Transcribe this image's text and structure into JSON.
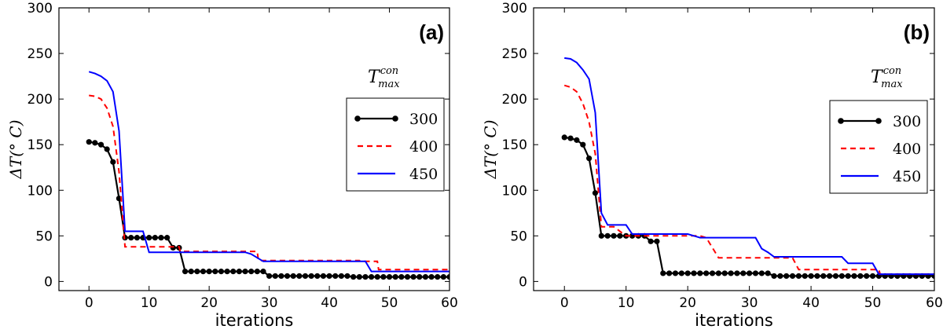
{
  "chart_data": [
    {
      "type": "line",
      "panel_label": "(a)",
      "xlabel": "iterations",
      "ylabel": "ΔT(° C)",
      "xlim": [
        -5,
        60
      ],
      "ylim": [
        -10,
        300
      ],
      "xticks": [
        "0",
        "10",
        "20",
        "30",
        "40",
        "50",
        "60"
      ],
      "yticks": [
        "0",
        "50",
        "100",
        "150",
        "200",
        "250",
        "300"
      ],
      "legend_title": "T_max^con",
      "legend_title_main": "T",
      "legend_title_sup": "con",
      "legend_title_sub": "max",
      "series": [
        {
          "name": "300",
          "color": "#000000",
          "style": "solid-marker",
          "x": [
            0,
            1,
            2,
            3,
            4,
            5,
            6,
            7,
            8,
            9,
            10,
            11,
            12,
            13,
            14,
            15,
            16,
            17,
            18,
            19,
            20,
            21,
            22,
            23,
            24,
            25,
            26,
            27,
            28,
            29,
            30,
            31,
            32,
            33,
            34,
            35,
            36,
            37,
            38,
            39,
            40,
            41,
            42,
            43,
            44,
            45,
            46,
            47,
            48,
            49,
            50,
            51,
            52,
            53,
            54,
            55,
            56,
            57,
            58,
            59,
            60
          ],
          "y": [
            153,
            152,
            150,
            145,
            131,
            91,
            48,
            48,
            48,
            48,
            48,
            48,
            48,
            48,
            37,
            37,
            11,
            11,
            11,
            11,
            11,
            11,
            11,
            11,
            11,
            11,
            11,
            11,
            11,
            11,
            6,
            6,
            6,
            6,
            6,
            6,
            6,
            6,
            6,
            6,
            6,
            6,
            6,
            6,
            5,
            5,
            5,
            5,
            5,
            5,
            5,
            5,
            5,
            5,
            5,
            5,
            5,
            5,
            5,
            5,
            5
          ]
        },
        {
          "name": "400",
          "color": "#ff0000",
          "style": "dashed",
          "x": [
            0,
            1,
            2,
            3,
            4,
            5,
            6,
            10,
            15,
            15.2,
            28,
            28.2,
            45,
            45.2,
            48,
            48.2,
            60
          ],
          "y": [
            204,
            203,
            200,
            190,
            170,
            120,
            38,
            38,
            38,
            33,
            33,
            23,
            23,
            22,
            22,
            13,
            13
          ]
        },
        {
          "name": "450",
          "color": "#0000ff",
          "style": "solid",
          "x": [
            0,
            1,
            2,
            3,
            4,
            5,
            6,
            9,
            10,
            26,
            27,
            29,
            46,
            47,
            60
          ],
          "y": [
            230,
            228,
            225,
            220,
            208,
            165,
            55,
            55,
            32,
            32,
            30,
            22,
            22,
            11,
            11
          ]
        }
      ]
    },
    {
      "type": "line",
      "panel_label": "(b)",
      "xlabel": "iterations",
      "ylabel": "ΔT(° C)",
      "xlim": [
        -5,
        60
      ],
      "ylim": [
        -10,
        300
      ],
      "xticks": [
        "0",
        "10",
        "20",
        "30",
        "40",
        "50",
        "60"
      ],
      "yticks": [
        "0",
        "50",
        "100",
        "150",
        "200",
        "250",
        "300"
      ],
      "legend_title": "T_max^con",
      "legend_title_main": "T",
      "legend_title_sup": "con",
      "legend_title_sub": "max",
      "series": [
        {
          "name": "300",
          "color": "#000000",
          "style": "solid-marker",
          "x": [
            0,
            1,
            2,
            3,
            4,
            5,
            6,
            7,
            8,
            9,
            10,
            11,
            12,
            13,
            14,
            15,
            16,
            17,
            18,
            19,
            20,
            21,
            22,
            23,
            24,
            25,
            26,
            27,
            28,
            29,
            30,
            31,
            32,
            33,
            34,
            35,
            36,
            37,
            38,
            39,
            40,
            41,
            42,
            43,
            44,
            45,
            46,
            47,
            48,
            49,
            50,
            51,
            52,
            53,
            54,
            55,
            56,
            57,
            58,
            59,
            60
          ],
          "y": [
            158,
            157,
            155,
            150,
            135,
            97,
            50,
            50,
            50,
            50,
            50,
            50,
            50,
            50,
            44,
            44,
            9,
            9,
            9,
            9,
            9,
            9,
            9,
            9,
            9,
            9,
            9,
            9,
            9,
            9,
            9,
            9,
            9,
            9,
            6,
            6,
            6,
            6,
            6,
            6,
            6,
            6,
            6,
            6,
            6,
            6,
            6,
            6,
            6,
            6,
            6,
            6,
            6,
            6,
            6,
            6,
            6,
            6,
            6,
            6,
            6
          ]
        },
        {
          "name": "400",
          "color": "#ff0000",
          "style": "dashed",
          "x": [
            0,
            1,
            2,
            3,
            4,
            5,
            6,
            8,
            10,
            22,
            23,
            25,
            37,
            38,
            51,
            51.2,
            60
          ],
          "y": [
            215,
            213,
            208,
            195,
            175,
            140,
            60,
            60,
            50,
            50,
            48,
            26,
            26,
            13,
            13,
            8,
            8
          ]
        },
        {
          "name": "450",
          "color": "#0000ff",
          "style": "solid",
          "x": [
            0,
            1,
            2,
            3,
            4,
            5,
            6,
            7,
            10,
            11,
            20,
            22,
            31,
            32,
            33,
            34,
            45,
            46,
            50,
            51,
            60
          ],
          "y": [
            245,
            244,
            240,
            232,
            222,
            185,
            75,
            62,
            62,
            52,
            52,
            48,
            48,
            36,
            32,
            27,
            27,
            20,
            20,
            8,
            8
          ]
        }
      ]
    }
  ]
}
